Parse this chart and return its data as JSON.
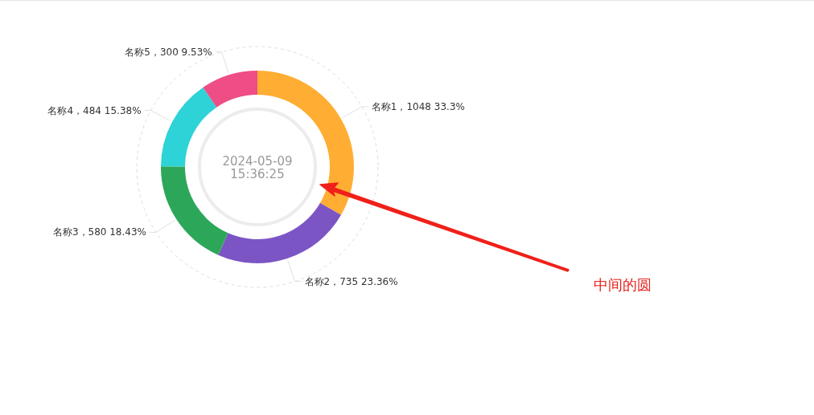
{
  "chart_data": {
    "type": "donut",
    "categories": [
      "名称1",
      "名称2",
      "名称3",
      "名称4",
      "名称5"
    ],
    "values": [
      1048,
      735,
      580,
      484,
      300
    ],
    "value_labels": [
      "1048 33.3%",
      "735 23.36%",
      "580 18.43%",
      "484 15.38%",
      "300 9.53%"
    ],
    "colors": [
      "#ffad33",
      "#7c55c4",
      "#2ca75a",
      "#2dd3d6",
      "#ee4d85"
    ],
    "annotations": [
      "2024-05-09",
      "15:36:25",
      "中间的圆"
    ]
  }
}
